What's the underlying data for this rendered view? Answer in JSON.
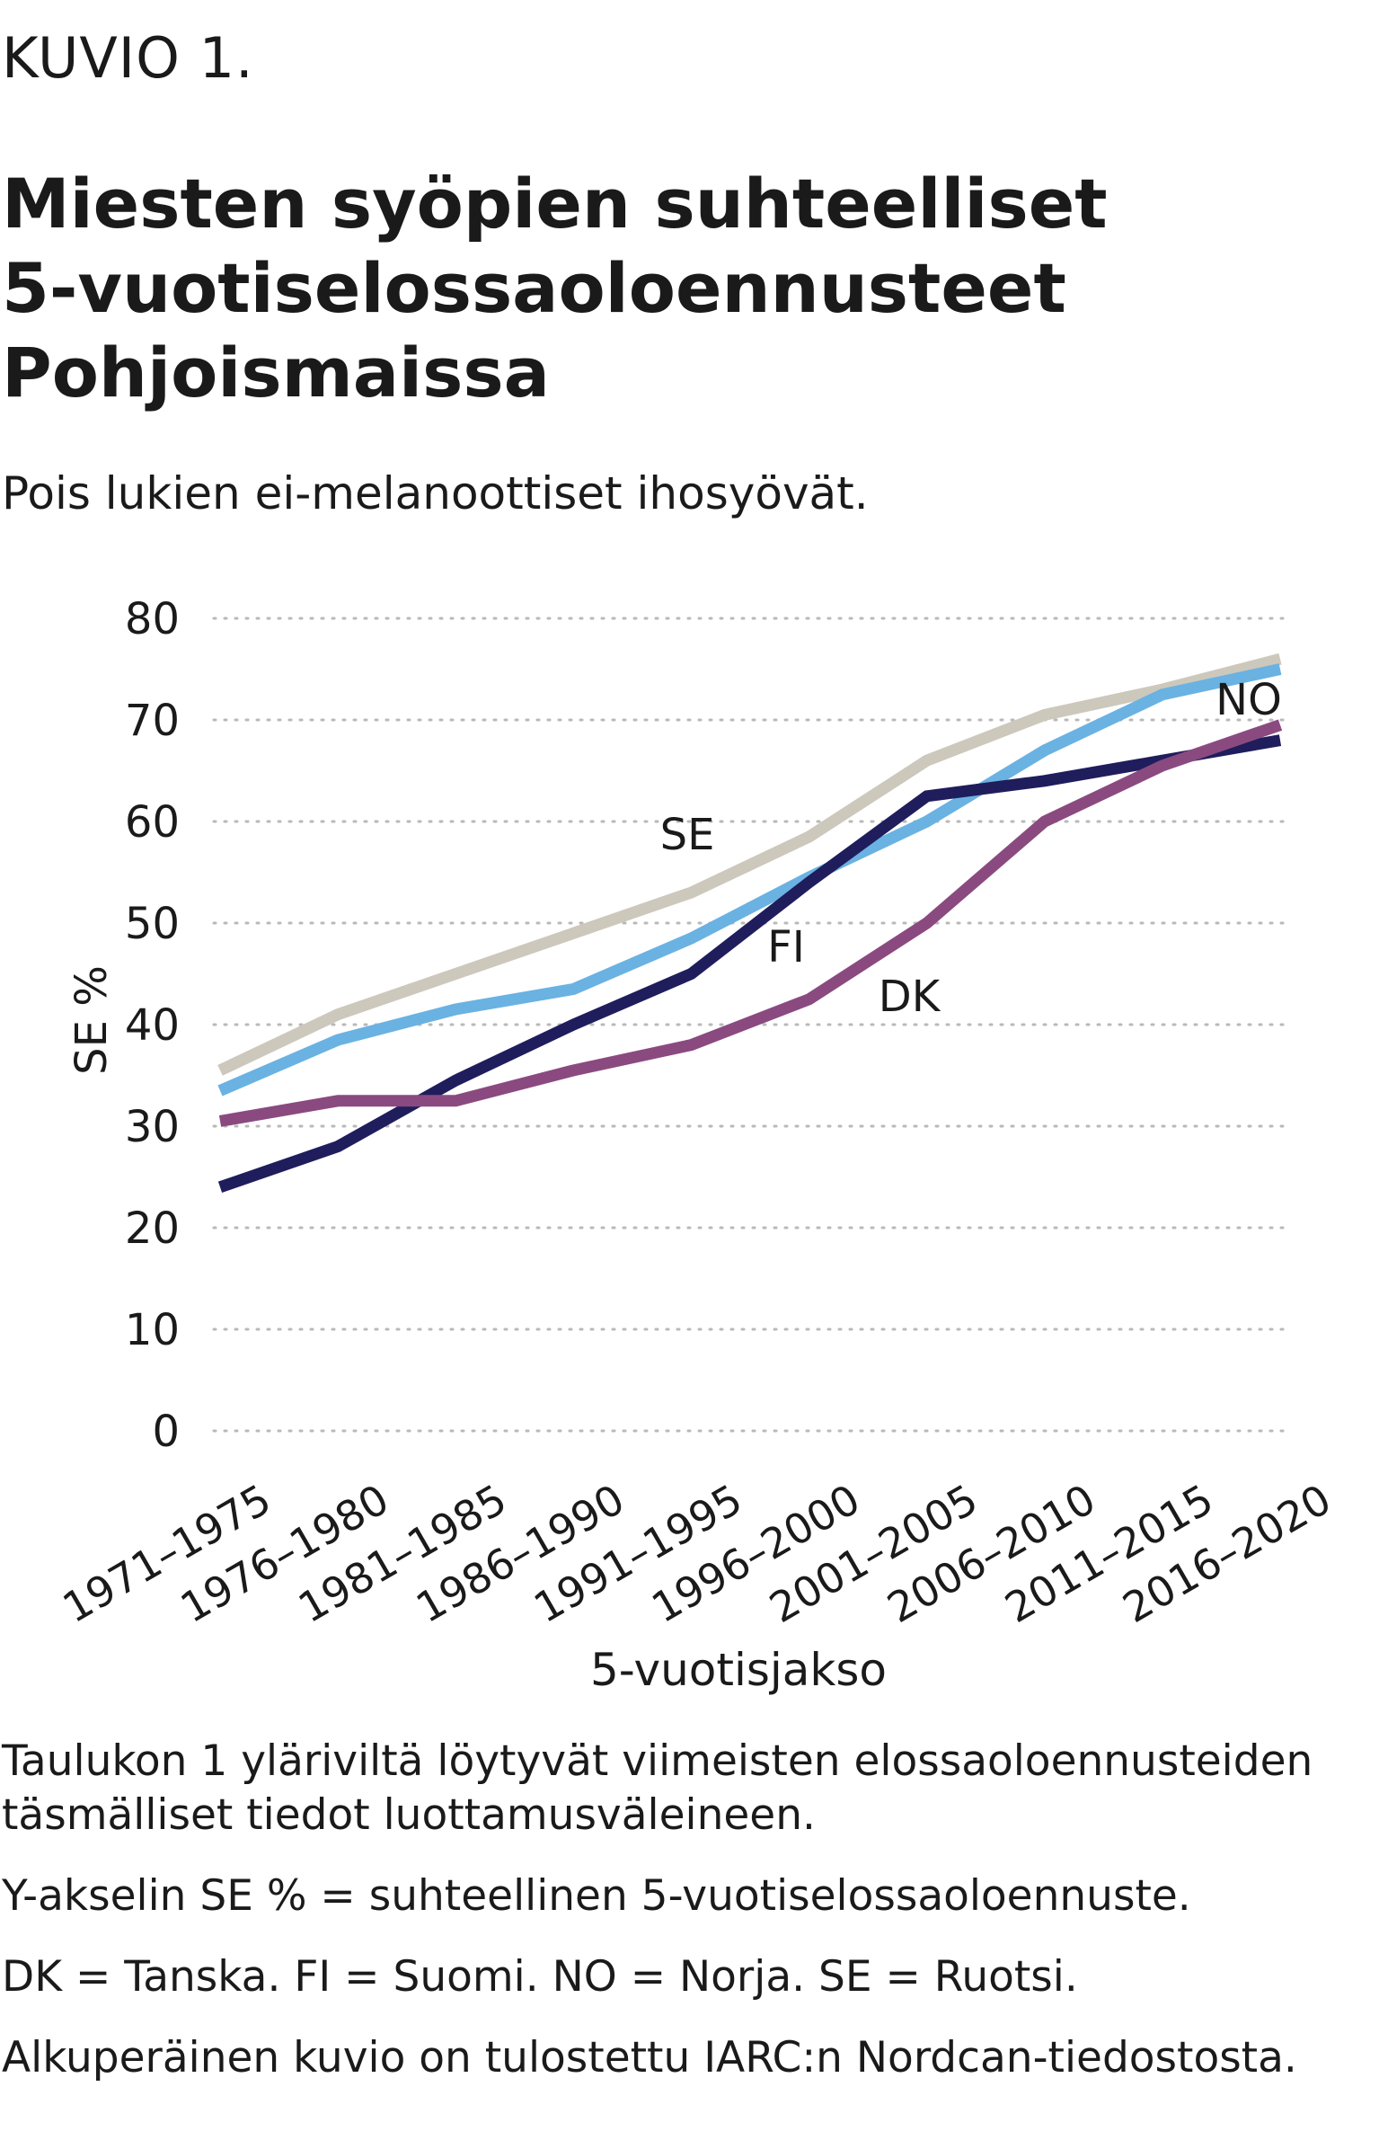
{
  "kicker": "KUVIO 1.",
  "title_lines": [
    "Miesten syöpien suhteelliset",
    "5-vuotiselossaoloennusteet",
    "Pohjoismaissa"
  ],
  "subtitle": "Pois lukien ei-melanoottiset ihosyövät.",
  "notes": [
    "Taulukon 1 yläriviltä löytyvät viimeisten elossaoloennusteiden täsmälliset tiedot luottamusväleineen.",
    "Y-akselin SE % = suhteellinen 5-vuotiselossaoloennuste.",
    "DK = Tanska. FI = Suomi. NO = Norja. SE = Ruotsi.",
    "Alkuperäinen kuvio on tulostettu IARC:n Nordcan-tiedostosta."
  ],
  "chart_data": {
    "type": "line",
    "xlabel": "5-vuotisjakso",
    "ylabel": "SE %",
    "ylim": [
      0,
      80
    ],
    "yticks": [
      0,
      10,
      20,
      30,
      40,
      50,
      60,
      70,
      80
    ],
    "grid": "horizontal-dotted",
    "categories": [
      "1971–1975",
      "1976–1980",
      "1981–1985",
      "1986–1990",
      "1991–1995",
      "1996–2000",
      "2001–2005",
      "2006–2010",
      "2011–2015",
      "2016–2020"
    ],
    "series": [
      {
        "name": "SE",
        "color": "#cdc8bc",
        "values": [
          35.5,
          41,
          45,
          49,
          53,
          58.5,
          66,
          70.5,
          73,
          76
        ]
      },
      {
        "name": "NO",
        "color": "#6ab2e2",
        "values": [
          33.5,
          38.5,
          41.5,
          43.5,
          48.5,
          54.5,
          60,
          67,
          72.5,
          75
        ]
      },
      {
        "name": "FI",
        "color": "#1f1d5c",
        "values": [
          24,
          28,
          34.5,
          40,
          45,
          54,
          62.5,
          64,
          66,
          68
        ]
      },
      {
        "name": "DK",
        "color": "#8a4a80",
        "values": [
          30.5,
          32.5,
          32.5,
          35.5,
          38,
          42.5,
          50,
          60,
          65.5,
          69.5
        ]
      }
    ]
  }
}
